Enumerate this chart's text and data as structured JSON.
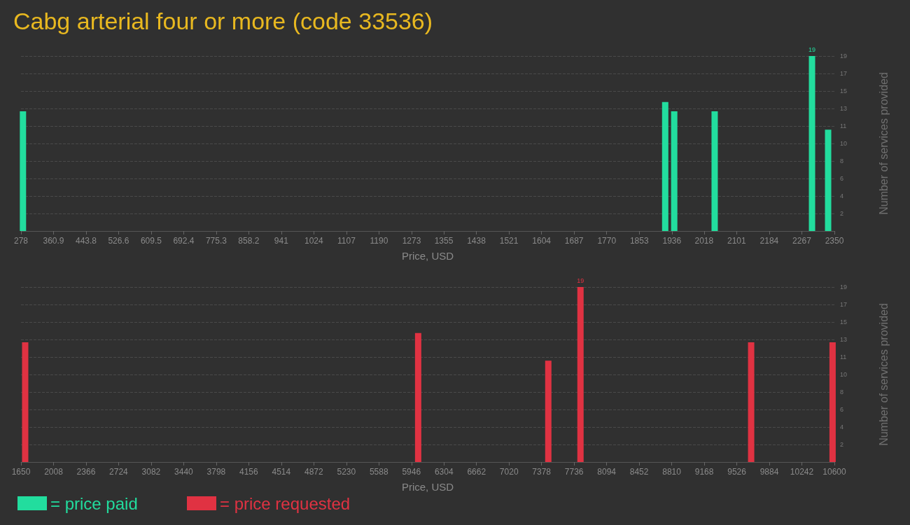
{
  "chart_data": [
    {
      "type": "bar",
      "title": "Cabg arterial four or more (code 33536)",
      "xlabel": "Price, USD",
      "ylabel": "Number of services provided",
      "series": [
        {
          "name": "= price paid",
          "color": "#22dd9e",
          "x": [
            283,
            1919,
            1942,
            2045,
            2293,
            2334
          ],
          "values": [
            13,
            14,
            13,
            13,
            19,
            11
          ],
          "value_labels": [
            null,
            null,
            null,
            null,
            "19",
            null
          ]
        }
      ],
      "xlim": [
        278,
        2350
      ],
      "xticks": [
        278,
        360.9,
        443.8,
        526.6,
        609.5,
        692.4,
        775.3,
        858.2,
        941,
        1024,
        1107,
        1190,
        1273,
        1355,
        1438,
        1521,
        1604,
        1687,
        1770,
        1853,
        1936,
        2018,
        2101,
        2184,
        2267,
        2350
      ],
      "ylim": [
        0,
        19
      ],
      "yticks": [
        {
          "value": 1.9,
          "label": "2"
        },
        {
          "value": 3.8,
          "label": "4"
        },
        {
          "value": 5.7,
          "label": "6"
        },
        {
          "value": 7.6,
          "label": "8"
        },
        {
          "value": 9.5,
          "label": "10"
        },
        {
          "value": 11.4,
          "label": "11"
        },
        {
          "value": 13.3,
          "label": "13"
        },
        {
          "value": 15.2,
          "label": "15"
        },
        {
          "value": 17.1,
          "label": "17"
        },
        19
      ],
      "grid": "y",
      "legend": "bottom left"
    },
    {
      "type": "bar",
      "xlabel": "Price, USD",
      "ylabel": "Number of services provided",
      "series": [
        {
          "name": "= price requested",
          "color": "#e03242",
          "x": [
            1696,
            6020,
            7452,
            7806,
            9684,
            10580
          ],
          "values": [
            13,
            14,
            11,
            19,
            13,
            13
          ],
          "value_labels": [
            null,
            null,
            null,
            "19",
            null,
            null
          ]
        }
      ],
      "xlim": [
        1650,
        10600
      ],
      "xticks": [
        1650,
        2008,
        2366,
        2724,
        3082,
        3440,
        3798,
        4156,
        4514,
        4872,
        5230,
        5588,
        5946,
        6304,
        6662,
        7020,
        7378,
        7736,
        8094,
        8452,
        8810,
        9168,
        9526,
        9884,
        10242,
        10600
      ],
      "ylim": [
        0,
        19
      ],
      "yticks": [
        {
          "value": 1.9,
          "label": "2"
        },
        {
          "value": 3.8,
          "label": "4"
        },
        {
          "value": 5.7,
          "label": "6"
        },
        {
          "value": 7.6,
          "label": "8"
        },
        {
          "value": 9.5,
          "label": "10"
        },
        {
          "value": 11.4,
          "label": "11"
        },
        {
          "value": 13.3,
          "label": "13"
        },
        {
          "value": 15.2,
          "label": "15"
        },
        {
          "value": 17.1,
          "label": "17"
        },
        19
      ],
      "grid": "y",
      "legend": "bottom left"
    }
  ]
}
